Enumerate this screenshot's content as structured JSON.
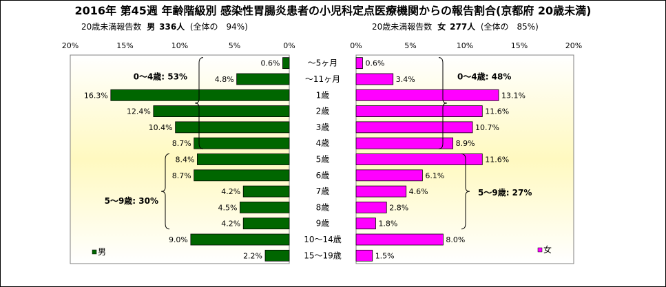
{
  "title": "2016年 第45週 年齢階級別 感染性胃腸炎患者の小児科定点医療機関からの報告割合(京都府 20歳未満)",
  "male_header": {
    "caption": "20歳未満報告数",
    "sex": "男",
    "count": "336人",
    "share": "(全体の　94%)"
  },
  "female_header": {
    "caption": "20歳未満報告数",
    "sex": "女",
    "count": "277人",
    "share": "(全体の　85%)"
  },
  "colors": {
    "male": "#006600",
    "female": "#ff00ff",
    "panel_top": "#ffffff",
    "panel_mid": "#fff9c0"
  },
  "chart_data": {
    "type": "bar",
    "categories": [
      "～5ヶ月",
      "～11ヶ月",
      "1歳",
      "2歳",
      "3歳",
      "4歳",
      "5歳",
      "6歳",
      "7歳",
      "8歳",
      "9歳",
      "10～14歳",
      "15～19歳"
    ],
    "series": [
      {
        "name": "男",
        "values": [
          0.6,
          4.8,
          16.3,
          12.4,
          10.4,
          8.7,
          8.4,
          8.7,
          4.2,
          4.5,
          4.2,
          9.0,
          2.2
        ],
        "labels": [
          "0.6%",
          "4.8%",
          "16.3%",
          "12.4%",
          "10.4%",
          "8.7%",
          "8.4%",
          "8.7%",
          "4.2%",
          "4.5%",
          "4.2%",
          "9.0%",
          "2.2%"
        ]
      },
      {
        "name": "女",
        "values": [
          0.6,
          3.4,
          13.1,
          11.6,
          10.7,
          8.9,
          11.6,
          6.1,
          4.6,
          2.8,
          1.8,
          8.0,
          1.5
        ],
        "labels": [
          "0.6%",
          "3.4%",
          "13.1%",
          "11.6%",
          "10.7%",
          "8.9%",
          "11.6%",
          "6.1%",
          "4.6%",
          "2.8%",
          "1.8%",
          "8.0%",
          "1.5%"
        ]
      }
    ],
    "xlim": [
      0,
      20
    ],
    "male_ticks": [
      "20%",
      "15%",
      "10%",
      "5%",
      "0%"
    ],
    "female_ticks": [
      "0%",
      "5%",
      "10%",
      "15%",
      "20%"
    ],
    "annotations": {
      "male_0_4": "0～4歳: 53%",
      "male_5_9": "5～9歳: 30%",
      "female_0_4": "0～4歳: 48%",
      "female_5_9": "5～9歳: 27%"
    },
    "legend": {
      "male": "男",
      "female": "女"
    }
  }
}
